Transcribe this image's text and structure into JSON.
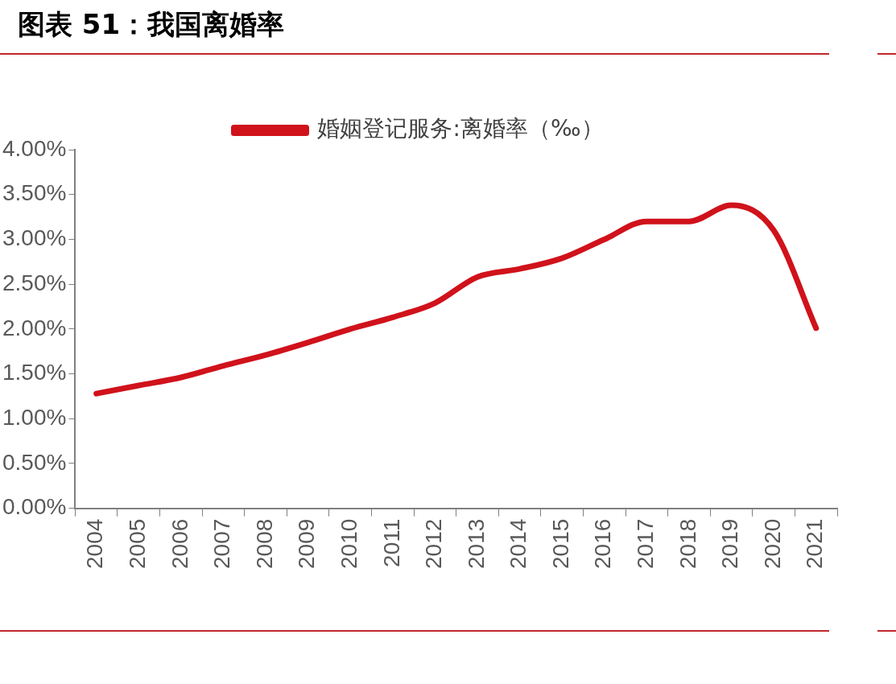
{
  "chart_data": {
    "type": "line",
    "title": "图表 51：我国离婚率",
    "categories": [
      "2004",
      "2005",
      "2006",
      "2007",
      "2008",
      "2009",
      "2010",
      "2011",
      "2012",
      "2013",
      "2014",
      "2015",
      "2016",
      "2017",
      "2018",
      "2019",
      "2020",
      "2021"
    ],
    "series": [
      {
        "name": "婚姻登记服务:离婚率（‰）",
        "color": "#d0121b",
        "values": [
          1.28,
          1.37,
          1.46,
          1.59,
          1.71,
          1.85,
          2.0,
          2.13,
          2.29,
          2.58,
          2.67,
          2.79,
          3.0,
          3.2,
          3.2,
          3.38,
          3.1,
          2.01
        ]
      }
    ],
    "ylim": [
      0,
      4
    ],
    "yticks": [
      {
        "value": 0,
        "label": "0.00%"
      },
      {
        "value": 0.5,
        "label": "0.50%"
      },
      {
        "value": 1,
        "label": "1.00%"
      },
      {
        "value": 1.5,
        "label": "1.50%"
      },
      {
        "value": 2,
        "label": "2.00%"
      },
      {
        "value": 2.5,
        "label": "2.50%"
      },
      {
        "value": 3,
        "label": "3.00%"
      },
      {
        "value": 3.5,
        "label": "3.50%"
      },
      {
        "value": 4,
        "label": "4.00%"
      }
    ],
    "grid": false,
    "legend": "top",
    "marker": "none",
    "line_style": "solid"
  }
}
